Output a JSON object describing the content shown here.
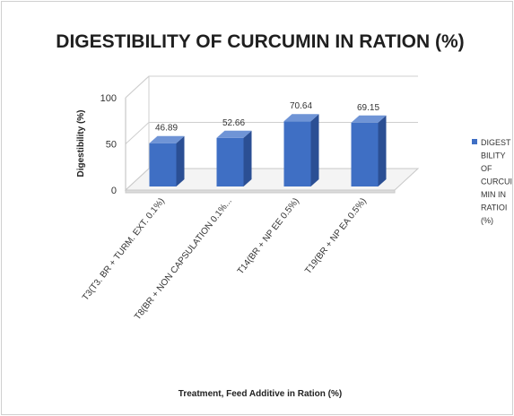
{
  "chart_data": {
    "type": "bar",
    "title": "DIGESTIBILITY OF CURCUMIN IN RATION (%)",
    "xlabel": "Treatment, Feed Additive in Ration (%)",
    "ylabel": "Digestibility (%)",
    "ylim": [
      0,
      100
    ],
    "yticks": [
      "0",
      "50",
      "100"
    ],
    "categories": [
      "T3(T3. BR + TURM. EXT. 0.1%)",
      "T8(BR + NON CAPSULATION 0.1%...",
      "T14(BR + NP EE 0.5%)",
      "T19(BR + NP EA 0.5%)"
    ],
    "series": [
      {
        "name": "DIGESTIBILITY OF CURCUMIN IN RATION (%)",
        "values": [
          46.89,
          52.66,
          70.64,
          69.15
        ],
        "labels": [
          "46.89",
          "52.66",
          "70.64",
          "69.15"
        ],
        "color": "#3f6fc4"
      }
    ],
    "legend": {
      "position": "right",
      "lines": [
        "DIGEST",
        "BILITY",
        "OF",
        "CURCUI",
        "MIN IN",
        "RATIOI",
        "(%)"
      ]
    },
    "grid": true
  }
}
